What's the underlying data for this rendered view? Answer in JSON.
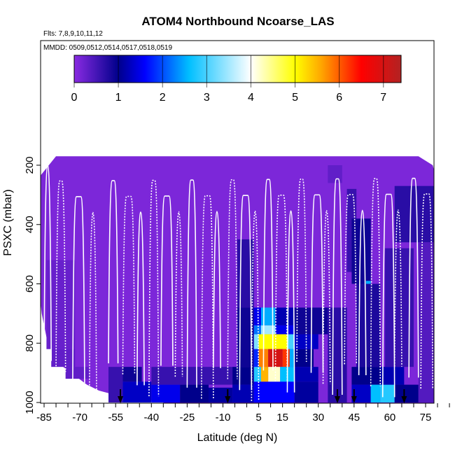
{
  "chart_data": {
    "type": "heatmap",
    "title": "ATOM4 Northbound Ncoarse_LAS",
    "annotations": [
      "Flts: 7,8,9,10,11,12",
      "MMDD: 0509,0512,0514,0517,0518,0519"
    ],
    "xlabel": "Latitude (deg N)",
    "ylabel": "PSXC (mbar)",
    "xlim": [
      -88,
      88
    ],
    "ylim": [
      1020,
      0
    ],
    "x_ticks": [
      "-85",
      "-70",
      "-55",
      "-40",
      "-25",
      "-10",
      "5",
      "15",
      "30",
      "45",
      "60",
      "75"
    ],
    "y_ticks": [
      "200",
      "400",
      "600",
      "800",
      "1000"
    ],
    "colorbar": {
      "range": [
        0,
        7.4
      ],
      "ticks": [
        "0",
        "1",
        "2",
        "3",
        "4",
        "5",
        "6",
        "7"
      ],
      "palette": [
        "#8a2be2",
        "#00008b",
        "#0000ff",
        "#00bfff",
        "#ffffff",
        "#ffff00",
        "#ffa500",
        "#ff0000",
        "#b22222"
      ]
    },
    "background_value": 0.1,
    "cells": [
      {
        "lat": [
          -84,
          -72
        ],
        "p": [
          520,
          820
        ],
        "v": 0.25
      },
      {
        "lat": [
          -82,
          -72
        ],
        "p": [
          820,
          880
        ],
        "v": 0.3
      },
      {
        "lat": [
          -76,
          -66
        ],
        "p": [
          880,
          920
        ],
        "v": 0.3
      },
      {
        "lat": [
          -58,
          -52
        ],
        "p": [
          880,
          1000
        ],
        "v": 0.6
      },
      {
        "lat": [
          -52,
          -44
        ],
        "p": [
          880,
          930
        ],
        "v": 0.9
      },
      {
        "lat": [
          -52,
          -40
        ],
        "p": [
          930,
          1000
        ],
        "v": 1.3
      },
      {
        "lat": [
          -40,
          -28
        ],
        "p": [
          940,
          1000
        ],
        "v": 1.5
      },
      {
        "lat": [
          -28,
          -16
        ],
        "p": [
          940,
          1000
        ],
        "v": 1.0
      },
      {
        "lat": [
          -16,
          -6
        ],
        "p": [
          950,
          1000
        ],
        "v": 1.1
      },
      {
        "lat": [
          -40,
          -6
        ],
        "p": [
          880,
          940
        ],
        "v": 0.6
      },
      {
        "lat": [
          -4,
          3
        ],
        "p": [
          450,
          680
        ],
        "v": 0.7
      },
      {
        "lat": [
          -4,
          3
        ],
        "p": [
          680,
          880
        ],
        "v": 0.9
      },
      {
        "lat": [
          -6,
          3
        ],
        "p": [
          880,
          940
        ],
        "v": 1.0
      },
      {
        "lat": [
          -6,
          3
        ],
        "p": [
          940,
          1000
        ],
        "v": 1.2
      },
      {
        "lat": [
          3,
          6
        ],
        "p": [
          680,
          740
        ],
        "v": 1.5
      },
      {
        "lat": [
          6,
          12
        ],
        "p": [
          680,
          740
        ],
        "v": 2.5
      },
      {
        "lat": [
          12,
          20
        ],
        "p": [
          680,
          740
        ],
        "v": 1.2
      },
      {
        "lat": [
          3,
          6
        ],
        "p": [
          740,
          770
        ],
        "v": 2.2
      },
      {
        "lat": [
          6,
          12
        ],
        "p": [
          740,
          770
        ],
        "v": 3.5
      },
      {
        "lat": [
          12,
          20
        ],
        "p": [
          740,
          770
        ],
        "v": 1.5
      },
      {
        "lat": [
          3,
          5
        ],
        "p": [
          770,
          820
        ],
        "v": 3.3
      },
      {
        "lat": [
          5,
          17
        ],
        "p": [
          770,
          820
        ],
        "v": 5.0
      },
      {
        "lat": [
          17,
          20
        ],
        "p": [
          770,
          820
        ],
        "v": 3.0
      },
      {
        "lat": [
          20,
          30
        ],
        "p": [
          770,
          820
        ],
        "v": 1.3
      },
      {
        "lat": [
          3,
          5
        ],
        "p": [
          820,
          880
        ],
        "v": 1.8
      },
      {
        "lat": [
          5,
          9
        ],
        "p": [
          820,
          880
        ],
        "v": 5.8
      },
      {
        "lat": [
          9,
          15
        ],
        "p": [
          820,
          880
        ],
        "v": 7.0
      },
      {
        "lat": [
          15,
          18
        ],
        "p": [
          820,
          880
        ],
        "v": 6.2
      },
      {
        "lat": [
          18,
          20
        ],
        "p": [
          820,
          880
        ],
        "v": 2.5
      },
      {
        "lat": [
          20,
          28
        ],
        "p": [
          820,
          880
        ],
        "v": 1.0
      },
      {
        "lat": [
          3,
          6
        ],
        "p": [
          880,
          930
        ],
        "v": 2.8
      },
      {
        "lat": [
          6,
          9
        ],
        "p": [
          880,
          930
        ],
        "v": 5.5
      },
      {
        "lat": [
          9,
          14
        ],
        "p": [
          880,
          930
        ],
        "v": 4.2
      },
      {
        "lat": [
          14,
          20
        ],
        "p": [
          880,
          930
        ],
        "v": 2.6
      },
      {
        "lat": [
          20,
          30
        ],
        "p": [
          880,
          930
        ],
        "v": 1.2
      },
      {
        "lat": [
          3,
          20
        ],
        "p": [
          930,
          1000
        ],
        "v": 1.6
      },
      {
        "lat": [
          20,
          30
        ],
        "p": [
          930,
          1000
        ],
        "v": 1.1
      },
      {
        "lat": [
          20,
          34
        ],
        "p": [
          680,
          770
        ],
        "v": 0.9
      },
      {
        "lat": [
          34,
          42
        ],
        "p": [
          680,
          1000
        ],
        "v": 0.7
      },
      {
        "lat": [
          42,
          46
        ],
        "p": [
          280,
          560
        ],
        "v": 0.6
      },
      {
        "lat": [
          44,
          52
        ],
        "p": [
          380,
          600
        ],
        "v": 0.9
      },
      {
        "lat": [
          50,
          52
        ],
        "p": [
          590,
          660
        ],
        "v": 2.5
      },
      {
        "lat": [
          46,
          56
        ],
        "p": [
          600,
          880
        ],
        "v": 0.8
      },
      {
        "lat": [
          44,
          58
        ],
        "p": [
          880,
          940
        ],
        "v": 1.0
      },
      {
        "lat": [
          44,
          52
        ],
        "p": [
          940,
          1000
        ],
        "v": 1.3
      },
      {
        "lat": [
          52,
          56
        ],
        "p": [
          940,
          1000
        ],
        "v": 2.6
      },
      {
        "lat": [
          56,
          62
        ],
        "p": [
          940,
          1000
        ],
        "v": 2.8
      },
      {
        "lat": [
          56,
          66
        ],
        "p": [
          880,
          940
        ],
        "v": 1.2
      },
      {
        "lat": [
          62,
          72
        ],
        "p": [
          940,
          1000
        ],
        "v": 1.0
      },
      {
        "lat": [
          58,
          70
        ],
        "p": [
          480,
          880
        ],
        "v": 0.6
      },
      {
        "lat": [
          62,
          82
        ],
        "p": [
          270,
          460
        ],
        "v": 0.7
      },
      {
        "lat": [
          72,
          82
        ],
        "p": [
          460,
          1000
        ],
        "v": 0.4
      },
      {
        "lat": [
          34,
          40
        ],
        "p": [
          200,
          260
        ],
        "v": 0.3
      }
    ],
    "arrows_lat": [
      -53,
      -8,
      38,
      45,
      66
    ]
  }
}
